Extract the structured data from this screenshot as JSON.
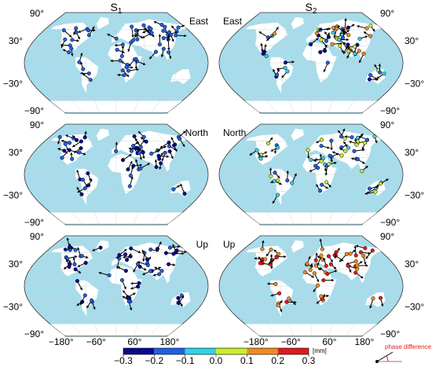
{
  "columns": [
    {
      "symbol": "S",
      "subscript": "1"
    },
    {
      "symbol": "S",
      "subscript": "2"
    }
  ],
  "rows": [
    "East",
    "North",
    "Up"
  ],
  "lat_labels": [
    "90°",
    "30°",
    "−30°",
    "−90°"
  ],
  "lon_labels": [
    "−180°",
    "−60°",
    "60°",
    "180°"
  ],
  "colorbar": {
    "ticks": [
      {
        "value": -0.3,
        "label": "−0.3"
      },
      {
        "value": -0.2,
        "label": "−0.2"
      },
      {
        "value": -0.1,
        "label": "−0.1"
      },
      {
        "value": 0,
        "label": "0.0"
      },
      {
        "value": 0.1,
        "label": "0.1"
      },
      {
        "value": 0.2,
        "label": "0.2"
      },
      {
        "value": 0.3,
        "label": "0.3"
      }
    ],
    "range": [
      -0.3,
      0.3
    ],
    "unit": "[mm]",
    "colors": [
      "#0a0a8c",
      "#1f5fe0",
      "#2fd2e8",
      "#c8ee2a",
      "#f08c1e",
      "#e01a1a"
    ]
  },
  "legend": {
    "label": "phase difference"
  }
}
